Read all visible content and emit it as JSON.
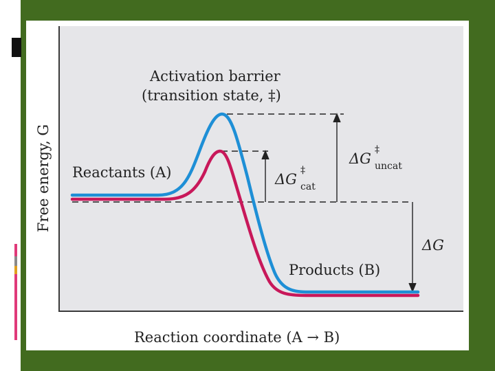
{
  "diagram": {
    "y_axis_label": "Free energy, G",
    "x_axis_label": "Reaction coordinate (A → B)",
    "barrier_label_line1": "Activation barrier",
    "barrier_label_line2": "(transition state, ‡)",
    "reactants_label": "Reactants (A)",
    "products_label": "Products (B)",
    "delta_g_cat": {
      "symbol": "ΔG",
      "superscript": "‡",
      "subscript": "cat"
    },
    "delta_g_uncat": {
      "symbol": "ΔG",
      "superscript": "‡",
      "subscript": "uncat"
    },
    "delta_g": "ΔG"
  },
  "colors": {
    "uncatalyzed_curve": "#1e8fd6",
    "catalyzed_curve": "#c8185a",
    "frame_green": "#426b1f",
    "plot_background": "#e6e6e9",
    "side_marks": [
      "#e03a7a",
      "#8a8a8a",
      "#e0a020",
      "#e03a7a"
    ]
  }
}
